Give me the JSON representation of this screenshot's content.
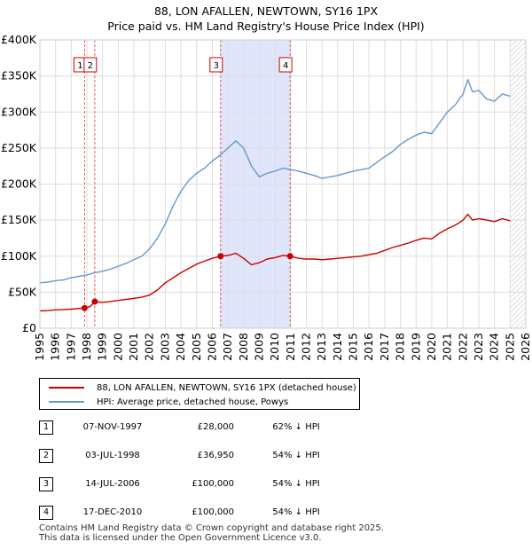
{
  "chart_data": {
    "type": "line",
    "title": "88, LON AFALLEN, NEWTOWN, SY16 1PX",
    "subtitle": "Price paid vs. HM Land Registry's House Price Index (HPI)",
    "xlim": [
      1995,
      2026
    ],
    "ylim": [
      0,
      400000
    ],
    "yticks": [
      0,
      50000,
      100000,
      150000,
      200000,
      250000,
      300000,
      350000,
      400000
    ],
    "ytick_labels": [
      "£0",
      "£50K",
      "£100K",
      "£150K",
      "£200K",
      "£250K",
      "£300K",
      "£350K",
      "£400K"
    ],
    "xticks": [
      1995,
      1996,
      1997,
      1998,
      1999,
      2000,
      2001,
      2002,
      2003,
      2004,
      2005,
      2006,
      2007,
      2008,
      2009,
      2010,
      2011,
      2012,
      2013,
      2014,
      2015,
      2016,
      2017,
      2018,
      2019,
      2020,
      2021,
      2022,
      2023,
      2024,
      2025,
      2026
    ],
    "grid": true,
    "shaded_regions": [
      {
        "start": 2006.53,
        "end": 2010.96,
        "color": "#dfe6fb"
      }
    ],
    "future_hatch_start": 2025.05,
    "series": [
      {
        "name": "88, LON AFALLEN, NEWTOWN, SY16 1PX (detached house)",
        "color": "#cc0000",
        "x": [
          1995.0,
          1995.5,
          1996.0,
          1996.5,
          1997.0,
          1997.5,
          1997.85,
          1998.2,
          1998.5,
          1999.0,
          1999.5,
          2000.0,
          2000.5,
          2001.0,
          2001.5,
          2002.0,
          2002.5,
          2003.0,
          2003.5,
          2004.0,
          2004.5,
          2005.0,
          2005.5,
          2006.0,
          2006.53,
          2007.0,
          2007.5,
          2008.0,
          2008.5,
          2009.0,
          2009.5,
          2010.0,
          2010.5,
          2010.96,
          2011.5,
          2012.0,
          2012.5,
          2013.0,
          2013.5,
          2014.0,
          2014.5,
          2015.0,
          2015.5,
          2016.0,
          2016.5,
          2017.0,
          2017.5,
          2018.0,
          2018.5,
          2019.0,
          2019.5,
          2020.0,
          2020.5,
          2021.0,
          2021.5,
          2022.0,
          2022.3,
          2022.6,
          2023.0,
          2023.5,
          2024.0,
          2024.5,
          2025.0
        ],
        "values": [
          24000,
          24500,
          25500,
          26000,
          26500,
          27500,
          28000,
          30000,
          36950,
          36000,
          37000,
          38500,
          40000,
          41500,
          43000,
          46000,
          53000,
          63000,
          70000,
          77000,
          83000,
          89000,
          93000,
          97000,
          100000,
          101000,
          104000,
          97000,
          88000,
          91000,
          96000,
          98000,
          101000,
          100000,
          97000,
          96000,
          96000,
          95000,
          96000,
          97000,
          98000,
          99000,
          100000,
          102000,
          104000,
          108000,
          112000,
          115000,
          118000,
          122000,
          125000,
          124000,
          132000,
          138000,
          143000,
          150000,
          158000,
          150000,
          152000,
          150000,
          148000,
          152000,
          149000
        ]
      },
      {
        "name": "HPI: Average price, detached house, Powys",
        "color": "#6699cc",
        "x": [
          1995.0,
          1995.5,
          1996.0,
          1996.5,
          1997.0,
          1997.5,
          1998.0,
          1998.5,
          1999.0,
          1999.5,
          2000.0,
          2000.5,
          2001.0,
          2001.5,
          2002.0,
          2002.5,
          2003.0,
          2003.5,
          2004.0,
          2004.5,
          2005.0,
          2005.5,
          2006.0,
          2006.5,
          2007.0,
          2007.5,
          2008.0,
          2008.5,
          2009.0,
          2009.5,
          2010.0,
          2010.5,
          2011.0,
          2011.5,
          2012.0,
          2012.5,
          2013.0,
          2013.5,
          2014.0,
          2014.5,
          2015.0,
          2015.5,
          2016.0,
          2016.5,
          2017.0,
          2017.5,
          2018.0,
          2018.5,
          2019.0,
          2019.5,
          2020.0,
          2020.5,
          2021.0,
          2021.5,
          2022.0,
          2022.3,
          2022.6,
          2023.0,
          2023.5,
          2024.0,
          2024.5,
          2025.0
        ],
        "values": [
          63000,
          64000,
          66000,
          67000,
          70000,
          72000,
          74000,
          77000,
          79000,
          82000,
          86000,
          90000,
          95000,
          100000,
          110000,
          125000,
          145000,
          170000,
          190000,
          205000,
          215000,
          222000,
          232000,
          240000,
          250000,
          260000,
          250000,
          225000,
          210000,
          215000,
          218000,
          222000,
          220000,
          218000,
          215000,
          212000,
          208000,
          210000,
          212000,
          215000,
          218000,
          220000,
          222000,
          230000,
          238000,
          245000,
          255000,
          262000,
          268000,
          272000,
          270000,
          285000,
          300000,
          310000,
          325000,
          345000,
          328000,
          330000,
          318000,
          315000,
          325000,
          322000
        ]
      }
    ],
    "markers": [
      {
        "label": "1",
        "x": 1997.85,
        "value": 28000
      },
      {
        "label": "2",
        "x": 1998.5,
        "value": 36950
      },
      {
        "label": "3",
        "x": 2006.53,
        "value": 100000
      },
      {
        "label": "4",
        "x": 2010.96,
        "value": 100000
      }
    ]
  },
  "legend": {
    "items": [
      {
        "label": "88, LON AFALLEN, NEWTOWN, SY16 1PX (detached house)",
        "color": "#cc0000"
      },
      {
        "label": "HPI: Average price, detached house, Powys",
        "color": "#6699cc"
      }
    ]
  },
  "sales": [
    {
      "badge": "1",
      "date": "07-NOV-1997",
      "price": "£28,000",
      "hpi": "62% ↓ HPI"
    },
    {
      "badge": "2",
      "date": "03-JUL-1998",
      "price": "£36,950",
      "hpi": "54% ↓ HPI"
    },
    {
      "badge": "3",
      "date": "14-JUL-2006",
      "price": "£100,000",
      "hpi": "54% ↓ HPI"
    },
    {
      "badge": "4",
      "date": "17-DEC-2010",
      "price": "£100,000",
      "hpi": "54% ↓ HPI"
    }
  ],
  "footer": {
    "line1": "Contains HM Land Registry data © Crown copyright and database right 2025.",
    "line2": "This data is licensed under the Open Government Licence v3.0."
  }
}
